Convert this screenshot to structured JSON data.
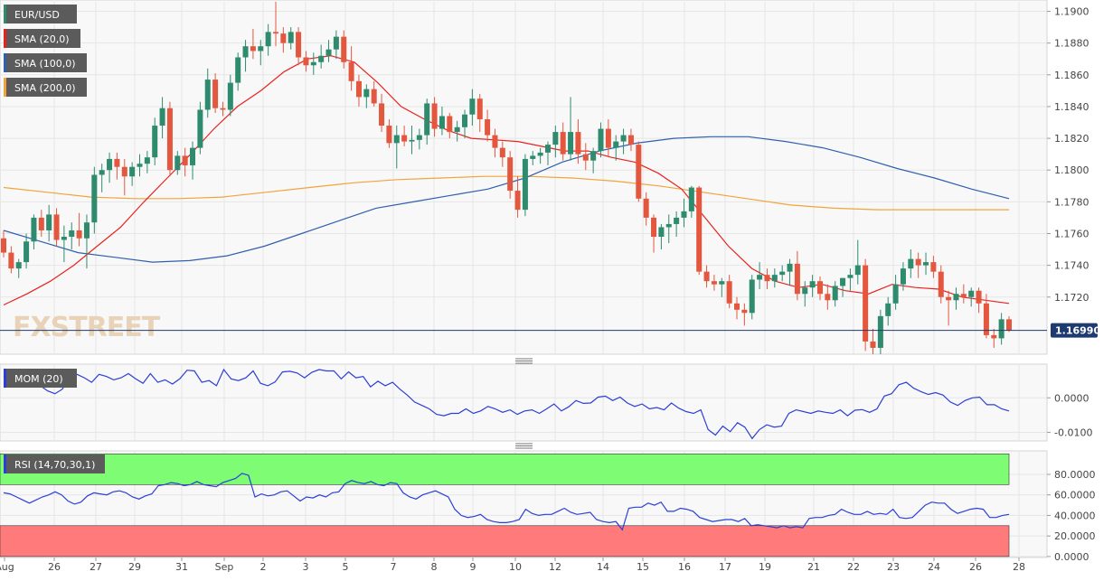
{
  "legend": {
    "symbol": "EUR/USD",
    "sma20": "SMA (20,0)",
    "sma100": "SMA (100,0)",
    "sma200": "SMA (200,0)",
    "mom": "MOM (20)",
    "rsi": "RSI (14,70,30,1)"
  },
  "watermark": "FXSTREET",
  "colors": {
    "up": "#2e8b6e",
    "down": "#e4573f",
    "sma20": "#e8231f",
    "sma100": "#2f5fae",
    "sma200": "#f2a33a",
    "indicator": "#2b3fd6",
    "rsi_overbought": "#7efc73",
    "rsi_oversold": "#ff7b7b",
    "price_line": "#1f3a6e"
  },
  "chart_data": [
    {
      "type": "candlestick",
      "symbol": "EUR/USD",
      "ylim": [
        1.1684,
        1.1906
      ],
      "yticks": [
        "1.1720",
        "1.1740",
        "1.1760",
        "1.1780",
        "1.1800",
        "1.1820",
        "1.1840",
        "1.1860",
        "1.1880",
        "1.1900"
      ],
      "last_price": "1.16990",
      "xticks": [
        "Aug",
        "26",
        "27",
        "29",
        "31",
        "Sep",
        "2",
        "3",
        "5",
        "7",
        "8",
        "9",
        "10",
        "12",
        "14",
        "15",
        "16",
        "17",
        "19",
        "21",
        "22",
        "23",
        "24",
        "26",
        "28"
      ],
      "ohlc": [
        [
          1.1757,
          1.1762,
          1.1745,
          1.1748
        ],
        [
          1.1748,
          1.1752,
          1.1735,
          1.1738
        ],
        [
          1.1738,
          1.1744,
          1.1732,
          1.1742
        ],
        [
          1.1742,
          1.176,
          1.1738,
          1.1755
        ],
        [
          1.1755,
          1.1772,
          1.175,
          1.177
        ],
        [
          1.177,
          1.1775,
          1.1758,
          1.1762
        ],
        [
          1.1762,
          1.1778,
          1.1755,
          1.1772
        ],
        [
          1.1772,
          1.1776,
          1.1752,
          1.1756
        ],
        [
          1.1756,
          1.1765,
          1.1742,
          1.1758
        ],
        [
          1.1758,
          1.1767,
          1.175,
          1.1762
        ],
        [
          1.1762,
          1.1773,
          1.1752,
          1.1757
        ],
        [
          1.1757,
          1.1772,
          1.1738,
          1.1767
        ],
        [
          1.1767,
          1.1802,
          1.176,
          1.1797
        ],
        [
          1.1797,
          1.1804,
          1.1786,
          1.18
        ],
        [
          1.18,
          1.1811,
          1.1792,
          1.1807
        ],
        [
          1.1807,
          1.1811,
          1.1794,
          1.1802
        ],
        [
          1.1802,
          1.1807,
          1.1784,
          1.1796
        ],
        [
          1.1796,
          1.1805,
          1.179,
          1.1802
        ],
        [
          1.1802,
          1.181,
          1.1796,
          1.1804
        ],
        [
          1.1804,
          1.1812,
          1.1798,
          1.1808
        ],
        [
          1.1808,
          1.1833,
          1.1803,
          1.1828
        ],
        [
          1.1828,
          1.1846,
          1.182,
          1.1839
        ],
        [
          1.1839,
          1.1843,
          1.1796,
          1.18
        ],
        [
          1.18,
          1.1812,
          1.1797,
          1.1809
        ],
        [
          1.1809,
          1.1814,
          1.1796,
          1.1803
        ],
        [
          1.1803,
          1.1818,
          1.1794,
          1.1814
        ],
        [
          1.1814,
          1.1843,
          1.181,
          1.1838
        ],
        [
          1.1838,
          1.1864,
          1.1833,
          1.1857
        ],
        [
          1.1857,
          1.1861,
          1.1836,
          1.1839
        ],
        [
          1.1839,
          1.1843,
          1.1834,
          1.1838
        ],
        [
          1.1838,
          1.186,
          1.1834,
          1.1855
        ],
        [
          1.1855,
          1.1874,
          1.185,
          1.1871
        ],
        [
          1.1871,
          1.1882,
          1.1862,
          1.1878
        ],
        [
          1.1878,
          1.1889,
          1.187,
          1.1875
        ],
        [
          1.1875,
          1.1882,
          1.1866,
          1.1878
        ],
        [
          1.1878,
          1.1892,
          1.1872,
          1.1887
        ],
        [
          1.1887,
          1.1906,
          1.1878,
          1.1886
        ],
        [
          1.1886,
          1.189,
          1.1874,
          1.188
        ],
        [
          1.188,
          1.189,
          1.1876,
          1.1887
        ],
        [
          1.1887,
          1.189,
          1.1866,
          1.1871
        ],
        [
          1.1871,
          1.1875,
          1.1862,
          1.1866
        ],
        [
          1.1866,
          1.1874,
          1.186,
          1.1868
        ],
        [
          1.1868,
          1.1879,
          1.1864,
          1.1872
        ],
        [
          1.1872,
          1.1882,
          1.1868,
          1.1876
        ],
        [
          1.1876,
          1.1888,
          1.187,
          1.1884
        ],
        [
          1.1884,
          1.1888,
          1.1864,
          1.1868
        ],
        [
          1.1868,
          1.1878,
          1.185,
          1.1856
        ],
        [
          1.1856,
          1.186,
          1.184,
          1.1846
        ],
        [
          1.1846,
          1.1854,
          1.1839,
          1.1851
        ],
        [
          1.1851,
          1.1856,
          1.184,
          1.1842
        ],
        [
          1.1842,
          1.1848,
          1.1824,
          1.1828
        ],
        [
          1.1828,
          1.1832,
          1.1814,
          1.1817
        ],
        [
          1.1817,
          1.1828,
          1.1801,
          1.1822
        ],
        [
          1.1822,
          1.1828,
          1.1815,
          1.1818
        ],
        [
          1.1818,
          1.1828,
          1.181,
          1.1819
        ],
        [
          1.1819,
          1.1826,
          1.1813,
          1.1822
        ],
        [
          1.1822,
          1.1845,
          1.1816,
          1.1842
        ],
        [
          1.1842,
          1.1846,
          1.1821,
          1.1826
        ],
        [
          1.1826,
          1.184,
          1.1822,
          1.1834
        ],
        [
          1.1834,
          1.1836,
          1.182,
          1.1824
        ],
        [
          1.1824,
          1.1831,
          1.1818,
          1.1827
        ],
        [
          1.1827,
          1.1838,
          1.182,
          1.1835
        ],
        [
          1.1835,
          1.1851,
          1.1828,
          1.1845
        ],
        [
          1.1845,
          1.1848,
          1.1824,
          1.1832
        ],
        [
          1.1832,
          1.1838,
          1.1818,
          1.1822
        ],
        [
          1.1822,
          1.1826,
          1.1808,
          1.1814
        ],
        [
          1.1814,
          1.1818,
          1.1802,
          1.1808
        ],
        [
          1.1808,
          1.1812,
          1.1782,
          1.1787
        ],
        [
          1.1787,
          1.1796,
          1.177,
          1.1775
        ],
        [
          1.1775,
          1.181,
          1.1771,
          1.1807
        ],
        [
          1.1807,
          1.1812,
          1.1803,
          1.1809
        ],
        [
          1.1809,
          1.1814,
          1.1804,
          1.1811
        ],
        [
          1.1811,
          1.1818,
          1.1803,
          1.1816
        ],
        [
          1.1816,
          1.1828,
          1.1808,
          1.1824
        ],
        [
          1.1824,
          1.183,
          1.1806,
          1.181
        ],
        [
          1.181,
          1.1846,
          1.1806,
          1.1824
        ],
        [
          1.1824,
          1.1832,
          1.1804,
          1.181
        ],
        [
          1.181,
          1.1817,
          1.18,
          1.1806
        ],
        [
          1.1806,
          1.1814,
          1.1798,
          1.1812
        ],
        [
          1.1812,
          1.183,
          1.1808,
          1.1826
        ],
        [
          1.1826,
          1.1832,
          1.1808,
          1.1814
        ],
        [
          1.1814,
          1.1822,
          1.1806,
          1.1818
        ],
        [
          1.1818,
          1.1826,
          1.181,
          1.1822
        ],
        [
          1.1822,
          1.1826,
          1.1812,
          1.1816
        ],
        [
          1.1816,
          1.1818,
          1.178,
          1.1782
        ],
        [
          1.1782,
          1.1786,
          1.1765,
          1.177
        ],
        [
          1.177,
          1.1772,
          1.1748,
          1.1758
        ],
        [
          1.1758,
          1.1766,
          1.175,
          1.1764
        ],
        [
          1.1764,
          1.1772,
          1.1754,
          1.1766
        ],
        [
          1.1766,
          1.1774,
          1.1758,
          1.177
        ],
        [
          1.177,
          1.1782,
          1.1764,
          1.1774
        ],
        [
          1.1774,
          1.179,
          1.177,
          1.1789
        ],
        [
          1.1789,
          1.179,
          1.1734,
          1.1736
        ],
        [
          1.1736,
          1.174,
          1.1726,
          1.173
        ],
        [
          1.173,
          1.1734,
          1.1724,
          1.1728
        ],
        [
          1.1728,
          1.1732,
          1.172,
          1.173
        ],
        [
          1.173,
          1.1734,
          1.1713,
          1.1716
        ],
        [
          1.1716,
          1.172,
          1.1706,
          1.1712
        ],
        [
          1.1712,
          1.1716,
          1.1702,
          1.171
        ],
        [
          1.171,
          1.1734,
          1.1706,
          1.1731
        ],
        [
          1.1731,
          1.1742,
          1.1725,
          1.1734
        ],
        [
          1.1734,
          1.1738,
          1.1725,
          1.173
        ],
        [
          1.173,
          1.1738,
          1.1726,
          1.1734
        ],
        [
          1.1734,
          1.174,
          1.173,
          1.1736
        ],
        [
          1.1736,
          1.1744,
          1.1727,
          1.1741
        ],
        [
          1.1741,
          1.1749,
          1.1718,
          1.1722
        ],
        [
          1.1722,
          1.173,
          1.1714,
          1.1726
        ],
        [
          1.1726,
          1.1734,
          1.172,
          1.173
        ],
        [
          1.173,
          1.1733,
          1.1718,
          1.1722
        ],
        [
          1.1722,
          1.1728,
          1.1712,
          1.1718
        ],
        [
          1.1718,
          1.173,
          1.1714,
          1.1727
        ],
        [
          1.1727,
          1.1732,
          1.172,
          1.1732
        ],
        [
          1.1732,
          1.1738,
          1.1724,
          1.1734
        ],
        [
          1.1734,
          1.1756,
          1.1728,
          1.174
        ],
        [
          1.174,
          1.1744,
          1.1686,
          1.1692
        ],
        [
          1.1692,
          1.17,
          1.1684,
          1.1688
        ],
        [
          1.1688,
          1.1712,
          1.1684,
          1.1708
        ],
        [
          1.1708,
          1.172,
          1.1702,
          1.1716
        ],
        [
          1.1716,
          1.1734,
          1.1712,
          1.1728
        ],
        [
          1.1728,
          1.1742,
          1.1724,
          1.1738
        ],
        [
          1.1738,
          1.175,
          1.1732,
          1.1744
        ],
        [
          1.1744,
          1.1748,
          1.1732,
          1.174
        ],
        [
          1.174,
          1.1748,
          1.1734,
          1.1742
        ],
        [
          1.1742,
          1.1746,
          1.1732,
          1.1736
        ],
        [
          1.1736,
          1.174,
          1.1716,
          1.172
        ],
        [
          1.172,
          1.1724,
          1.1702,
          1.1718
        ],
        [
          1.1718,
          1.1726,
          1.1712,
          1.1722
        ],
        [
          1.1722,
          1.1728,
          1.1716,
          1.172
        ],
        [
          1.172,
          1.1726,
          1.1714,
          1.1724
        ],
        [
          1.1724,
          1.1726,
          1.171,
          1.1716
        ],
        [
          1.1716,
          1.1722,
          1.1694,
          1.1696
        ],
        [
          1.1696,
          1.17,
          1.1688,
          1.1694
        ],
        [
          1.1694,
          1.171,
          1.169,
          1.1706
        ],
        [
          1.1706,
          1.1708,
          1.1698,
          1.1699
        ]
      ],
      "sma20": [
        1.1715,
        1.1722,
        1.173,
        1.174,
        1.1752,
        1.1764,
        1.178,
        1.1795,
        1.181,
        1.1826,
        1.184,
        1.185,
        1.1862,
        1.187,
        1.1872,
        1.1868,
        1.1855,
        1.184,
        1.1832,
        1.1825,
        1.182,
        1.1819,
        1.1818,
        1.1815,
        1.1812,
        1.1812,
        1.1808,
        1.1805,
        1.1798,
        1.1788,
        1.177,
        1.1752,
        1.1738,
        1.173,
        1.1726,
        1.1728,
        1.1724,
        1.1722,
        1.1728,
        1.1726,
        1.1725,
        1.172,
        1.1718,
        1.1716
      ],
      "sma100": [
        1.1762,
        1.1755,
        1.1748,
        1.1745,
        1.1742,
        1.1743,
        1.1746,
        1.1752,
        1.176,
        1.1768,
        1.1776,
        1.178,
        1.1784,
        1.1788,
        1.1795,
        1.1805,
        1.1812,
        1.1817,
        1.182,
        1.1821,
        1.1821,
        1.1818,
        1.1814,
        1.1808,
        1.1801,
        1.1795,
        1.1788,
        1.1782
      ],
      "sma200": [
        1.1789,
        1.1786,
        1.1783,
        1.1782,
        1.1782,
        1.1783,
        1.1786,
        1.1789,
        1.1792,
        1.1794,
        1.1795,
        1.1796,
        1.1796,
        1.1795,
        1.1793,
        1.179,
        1.1786,
        1.1782,
        1.1778,
        1.1776,
        1.1775,
        1.1775,
        1.1775,
        1.1775
      ]
    },
    {
      "type": "line",
      "name": "MOM (20)",
      "ylim": [
        -0.0125,
        0.0095
      ],
      "yticks": [
        "0.0000",
        "-0.0100"
      ],
      "values": [
        0.006,
        0.0075,
        0.007,
        0.0065,
        0.0055,
        0.0035,
        0.002,
        0.0012,
        0.0025,
        0.006,
        0.0068,
        0.0058,
        0.0045,
        0.0068,
        0.0062,
        0.0052,
        0.0058,
        0.007,
        0.0055,
        0.0042,
        0.007,
        0.0045,
        0.0052,
        0.004,
        0.0055,
        0.008,
        0.0078,
        0.0045,
        0.005,
        0.0035,
        0.0082,
        0.0055,
        0.005,
        0.0058,
        0.0078,
        0.0042,
        0.0035,
        0.0046,
        0.0075,
        0.0077,
        0.0072,
        0.0058,
        0.0074,
        0.0082,
        0.0078,
        0.0078,
        0.0055,
        0.0075,
        0.0058,
        0.0062,
        0.0032,
        0.0048,
        0.0035,
        0.0045,
        0.0025,
        0.0008,
        -0.0012,
        -0.0022,
        -0.0032,
        -0.0048,
        -0.0052,
        -0.0045,
        -0.0045,
        -0.0032,
        -0.0045,
        -0.0038,
        -0.0025,
        -0.0032,
        -0.0042,
        -0.0035,
        -0.0048,
        -0.0038,
        -0.0035,
        -0.0045,
        -0.0032,
        -0.0018,
        -0.0038,
        -0.0026,
        -0.0008,
        -0.0016,
        -0.0015,
        0.0002,
        0.0005,
        -0.0008,
        0.0002,
        -0.0015,
        -0.0025,
        -0.0018,
        -0.0032,
        -0.0028,
        -0.0035,
        -0.0015,
        -0.003,
        -0.004,
        -0.0045,
        -0.0035,
        -0.0092,
        -0.0108,
        -0.0082,
        -0.0098,
        -0.0072,
        -0.0085,
        -0.0118,
        -0.0092,
        -0.0078,
        -0.0085,
        -0.0082,
        -0.0045,
        -0.0035,
        -0.004,
        -0.0045,
        -0.0038,
        -0.0042,
        -0.0045,
        -0.0035,
        -0.0052,
        -0.0036,
        -0.0034,
        -0.0042,
        -0.0032,
        0.0005,
        0.0012,
        0.0038,
        0.0045,
        0.0028,
        0.0018,
        0.001,
        0.0015,
        0.0008,
        -0.0012,
        -0.0022,
        -0.0008,
        0.0,
        0.0002,
        -0.002,
        -0.002,
        -0.0032,
        -0.0038
      ],
      "color": "#2b3fd6"
    },
    {
      "type": "line",
      "name": "RSI (14,70,30,1)",
      "ylim": [
        -1,
        102
      ],
      "yticks": [
        "0.0000",
        "20.0000",
        "40.0000",
        "60.0000",
        "80.0000"
      ],
      "overbought": 70,
      "oversold": 30,
      "values": [
        62,
        61,
        58,
        55,
        52,
        55,
        58,
        60,
        63,
        60,
        54,
        51,
        53,
        59,
        62,
        61,
        60,
        63,
        64,
        62,
        58,
        56,
        59,
        61,
        69,
        70,
        72,
        71,
        69,
        70,
        73,
        70,
        69,
        68,
        72,
        74,
        76,
        81,
        79,
        58,
        61,
        59,
        60,
        63,
        64,
        59,
        54,
        58,
        57,
        60,
        58,
        62,
        63,
        71,
        74,
        72,
        71,
        73,
        70,
        69,
        72,
        71,
        62,
        58,
        56,
        60,
        62,
        64,
        61,
        58,
        46,
        40,
        38,
        39,
        41,
        36,
        34,
        33,
        33,
        34,
        36,
        46,
        42,
        40,
        41,
        41,
        44,
        47,
        43,
        41,
        42,
        43,
        36,
        34,
        33,
        34,
        26,
        47,
        48,
        48,
        52,
        50,
        53,
        44,
        44,
        47,
        46,
        44,
        38,
        36,
        34,
        35,
        36,
        36,
        34,
        37,
        30,
        31,
        30,
        29,
        28,
        30,
        28,
        29,
        28,
        37,
        38,
        38,
        40,
        41,
        46,
        43,
        41,
        41,
        44,
        41,
        42,
        41,
        46,
        38,
        37,
        38,
        44,
        50,
        53,
        52,
        52,
        46,
        42,
        44,
        46,
        47,
        46,
        38,
        38,
        40,
        41
      ],
      "color": "#2b3fd6"
    }
  ]
}
